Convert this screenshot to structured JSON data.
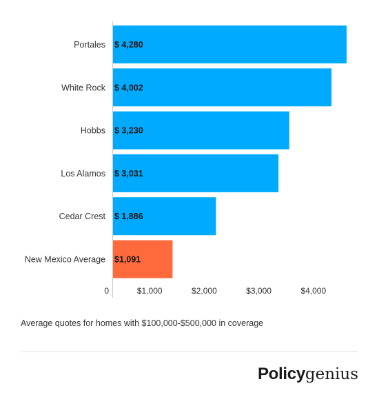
{
  "chart_data": {
    "type": "bar",
    "orientation": "horizontal",
    "categories": [
      "Portales",
      "White Rock",
      "Hobbs",
      "Los Alamos",
      "Cedar Crest",
      "New Mexico Average"
    ],
    "values": [
      4280,
      4002,
      3230,
      3031,
      1886,
      1091
    ],
    "data_labels": [
      "$ 4,280",
      "$ 4,002",
      "$ 3,230",
      "$ 3,031",
      "$ 1,886",
      "$1,091"
    ],
    "bar_colors": [
      "#00aaff",
      "#00aaff",
      "#00aaff",
      "#00aaff",
      "#00aaff",
      "#ff6a3d"
    ],
    "x_ticks": [
      0,
      1000,
      2000,
      3000,
      4000
    ],
    "x_tick_labels": [
      "0",
      "$1,000",
      "$2,000",
      "$3,000",
      "$4,000"
    ],
    "xlim": [
      0,
      4300
    ],
    "grid": false,
    "legend": "none"
  },
  "footnote": "Average quotes for homes with $100,000-$500,000 in coverage",
  "logo": {
    "bold": "Policy",
    "light": "genius"
  }
}
